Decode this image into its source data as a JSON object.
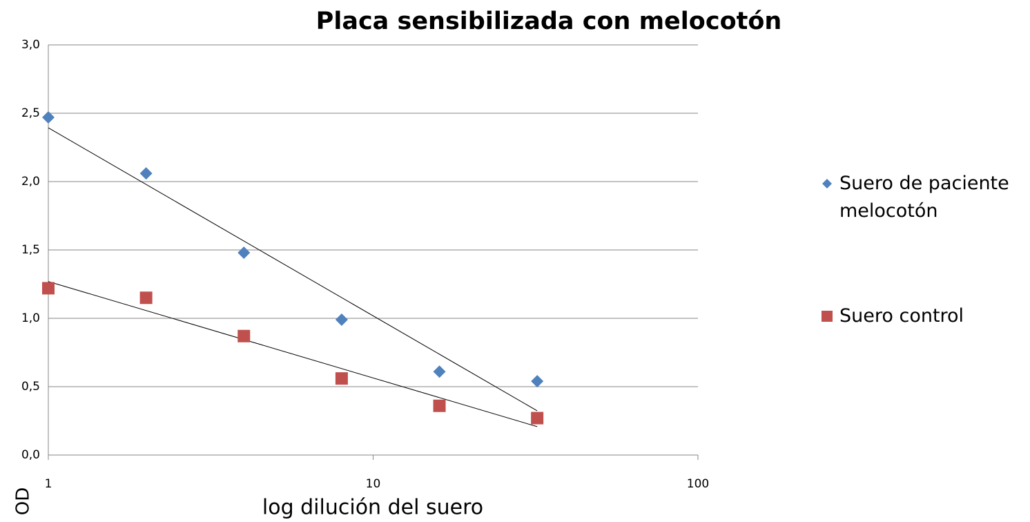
{
  "chart_data": {
    "type": "scatter",
    "title": "Placa sensibilizada con melocotón",
    "xlabel": "log dilución del suero",
    "ylabel": "OD",
    "x": [
      1,
      2,
      4,
      8,
      16,
      32
    ],
    "series": [
      {
        "name": "Suero de paciente melocotón",
        "color": "#4f81bd",
        "marker": "diamond",
        "trendline": "log",
        "values": [
          2.47,
          2.06,
          1.48,
          0.99,
          0.61,
          0.54
        ]
      },
      {
        "name": "Suero control",
        "color": "#c0504d",
        "marker": "square",
        "trendline": "log",
        "values": [
          1.22,
          1.15,
          0.87,
          0.56,
          0.36,
          0.27
        ]
      }
    ],
    "xscale": "log",
    "xlim": [
      1,
      100
    ],
    "xticks": [
      1,
      10,
      100
    ],
    "ylim": [
      0,
      3
    ],
    "yticks": [
      {
        "value": 0,
        "label": "0,0"
      },
      {
        "value": 0.5,
        "label": "0,5"
      },
      {
        "value": 1,
        "label": "1,0"
      },
      {
        "value": 1.5,
        "label": "1,5"
      },
      {
        "value": 2,
        "label": "2,0"
      },
      {
        "value": 2.5,
        "label": "2,5"
      },
      {
        "value": 3,
        "label": "3,0"
      }
    ],
    "grid": true,
    "legend": "right"
  }
}
